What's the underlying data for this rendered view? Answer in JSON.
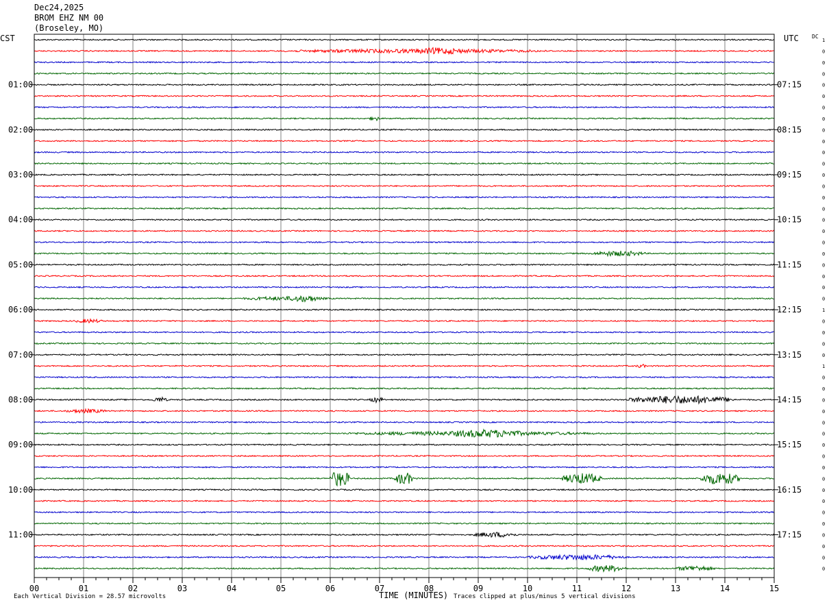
{
  "header": {
    "date": "Dec24,2025",
    "station": "BROM EHZ NM 00",
    "location": "(Broseley, MO)"
  },
  "labels": {
    "left_tz": "CST",
    "right_tz": "UTC",
    "dc": "DC",
    "xlabel": "TIME (MINUTES)",
    "foot_left": "Each Vertical Division =   28.57 microvolts",
    "foot_right": "Traces clipped at plus/minus 5 vertical divisions"
  },
  "colors": {
    "trace_cycle": [
      "#000000",
      "#ff0000",
      "#0000cc",
      "#006600"
    ],
    "grid": "#808080",
    "frame": "#000000"
  },
  "chart_data": {
    "type": "line",
    "title": "BROM EHZ NM 00",
    "xlabel": "TIME (MINUTES)",
    "xlim": [
      0,
      15
    ],
    "x_ticks": [
      "00",
      "01",
      "02",
      "03",
      "04",
      "05",
      "06",
      "07",
      "08",
      "09",
      "10",
      "11",
      "12",
      "13",
      "14",
      "15"
    ],
    "rows": 48,
    "minutes_per_row": 15,
    "left_hour_labels": [
      "01:00",
      "02:00",
      "03:00",
      "04:00",
      "05:00",
      "06:00",
      "07:00",
      "08:00",
      "09:00",
      "10:00",
      "11:00"
    ],
    "right_hour_labels": [
      "07:15",
      "08:15",
      "09:15",
      "10:15",
      "11:15",
      "12:15",
      "13:15",
      "14:15",
      "15:15",
      "16:15",
      "17:15"
    ],
    "dc_values": [
      "1",
      "0",
      "0",
      "0",
      "0",
      "0",
      "0",
      "0",
      "0",
      "0",
      "0",
      "0",
      "0",
      "0",
      "0",
      "0",
      "0",
      "0",
      "0",
      "0",
      "0",
      "0",
      "0",
      "0",
      "1",
      "0",
      "0",
      "0",
      "0",
      "1",
      "0",
      "0",
      "0",
      "0",
      "0",
      "0",
      "0",
      "0",
      "0",
      "0",
      "0",
      "0",
      "0",
      "0",
      "0",
      "0",
      "0",
      "0"
    ],
    "events": [
      {
        "row": 1,
        "start": 5.0,
        "end": 10.5,
        "amp": 3
      },
      {
        "row": 1,
        "start": 7.6,
        "end": 8.8,
        "amp": 5
      },
      {
        "row": 7,
        "start": 6.8,
        "end": 7.0,
        "amp": 4
      },
      {
        "row": 19,
        "start": 11.3,
        "end": 12.4,
        "amp": 4
      },
      {
        "row": 23,
        "start": 4.2,
        "end": 6.0,
        "amp": 3
      },
      {
        "row": 23,
        "start": 5.1,
        "end": 5.8,
        "amp": 5
      },
      {
        "row": 25,
        "start": 0.8,
        "end": 1.4,
        "amp": 3
      },
      {
        "row": 29,
        "start": 12.2,
        "end": 12.4,
        "amp": 3
      },
      {
        "row": 32,
        "start": 2.4,
        "end": 2.7,
        "amp": 4
      },
      {
        "row": 32,
        "start": 6.8,
        "end": 7.1,
        "amp": 4
      },
      {
        "row": 32,
        "start": 12.0,
        "end": 14.2,
        "amp": 6
      },
      {
        "row": 33,
        "start": 0.6,
        "end": 1.5,
        "amp": 3
      },
      {
        "row": 35,
        "start": 6.2,
        "end": 11.5,
        "amp": 3
      },
      {
        "row": 35,
        "start": 8.3,
        "end": 10.0,
        "amp": 6
      },
      {
        "row": 39,
        "start": 6.0,
        "end": 6.4,
        "amp": 12
      },
      {
        "row": 39,
        "start": 7.3,
        "end": 7.7,
        "amp": 9
      },
      {
        "row": 39,
        "start": 10.7,
        "end": 11.5,
        "amp": 8
      },
      {
        "row": 39,
        "start": 13.5,
        "end": 14.3,
        "amp": 9
      },
      {
        "row": 44,
        "start": 8.9,
        "end": 9.8,
        "amp": 4
      },
      {
        "row": 46,
        "start": 10.0,
        "end": 12.0,
        "amp": 4
      },
      {
        "row": 47,
        "start": 11.2,
        "end": 12.0,
        "amp": 5
      },
      {
        "row": 47,
        "start": 13.0,
        "end": 13.8,
        "amp": 4
      }
    ]
  }
}
